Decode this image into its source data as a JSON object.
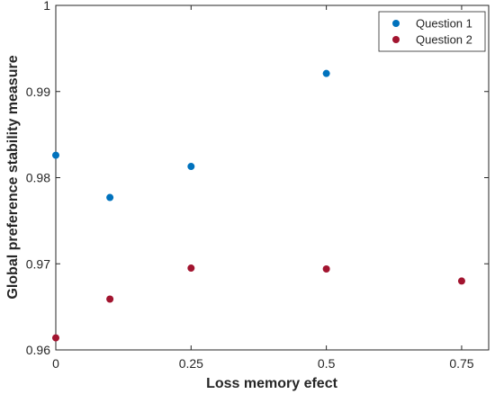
{
  "chart_data": {
    "type": "scatter",
    "xlabel": "Loss memory efect",
    "ylabel": "Global preference stability measure",
    "xlim": [
      0,
      0.8
    ],
    "ylim": [
      0.96,
      1
    ],
    "x_ticks": [
      0,
      0.25,
      0.5,
      0.75
    ],
    "x_tick_labels": [
      "0",
      "0.25",
      "0.5",
      "0.75"
    ],
    "y_ticks": [
      0.96,
      0.97,
      0.98,
      0.99,
      1
    ],
    "y_tick_labels": [
      "0.96",
      "0.97",
      "0.98",
      "0.99",
      "1"
    ],
    "grid": false,
    "legend_position": "top-right",
    "series": [
      {
        "name": "Question 1",
        "color": "#0072BD",
        "x": [
          0,
          0.1,
          0.25,
          0.5
        ],
        "y": [
          0.9826,
          0.9777,
          0.9813,
          0.9921
        ]
      },
      {
        "name": "Question 2",
        "color": "#A2142F",
        "x": [
          0,
          0.1,
          0.25,
          0.5,
          0.75
        ],
        "y": [
          0.9614,
          0.9659,
          0.9695,
          0.9694,
          0.968
        ]
      }
    ]
  }
}
